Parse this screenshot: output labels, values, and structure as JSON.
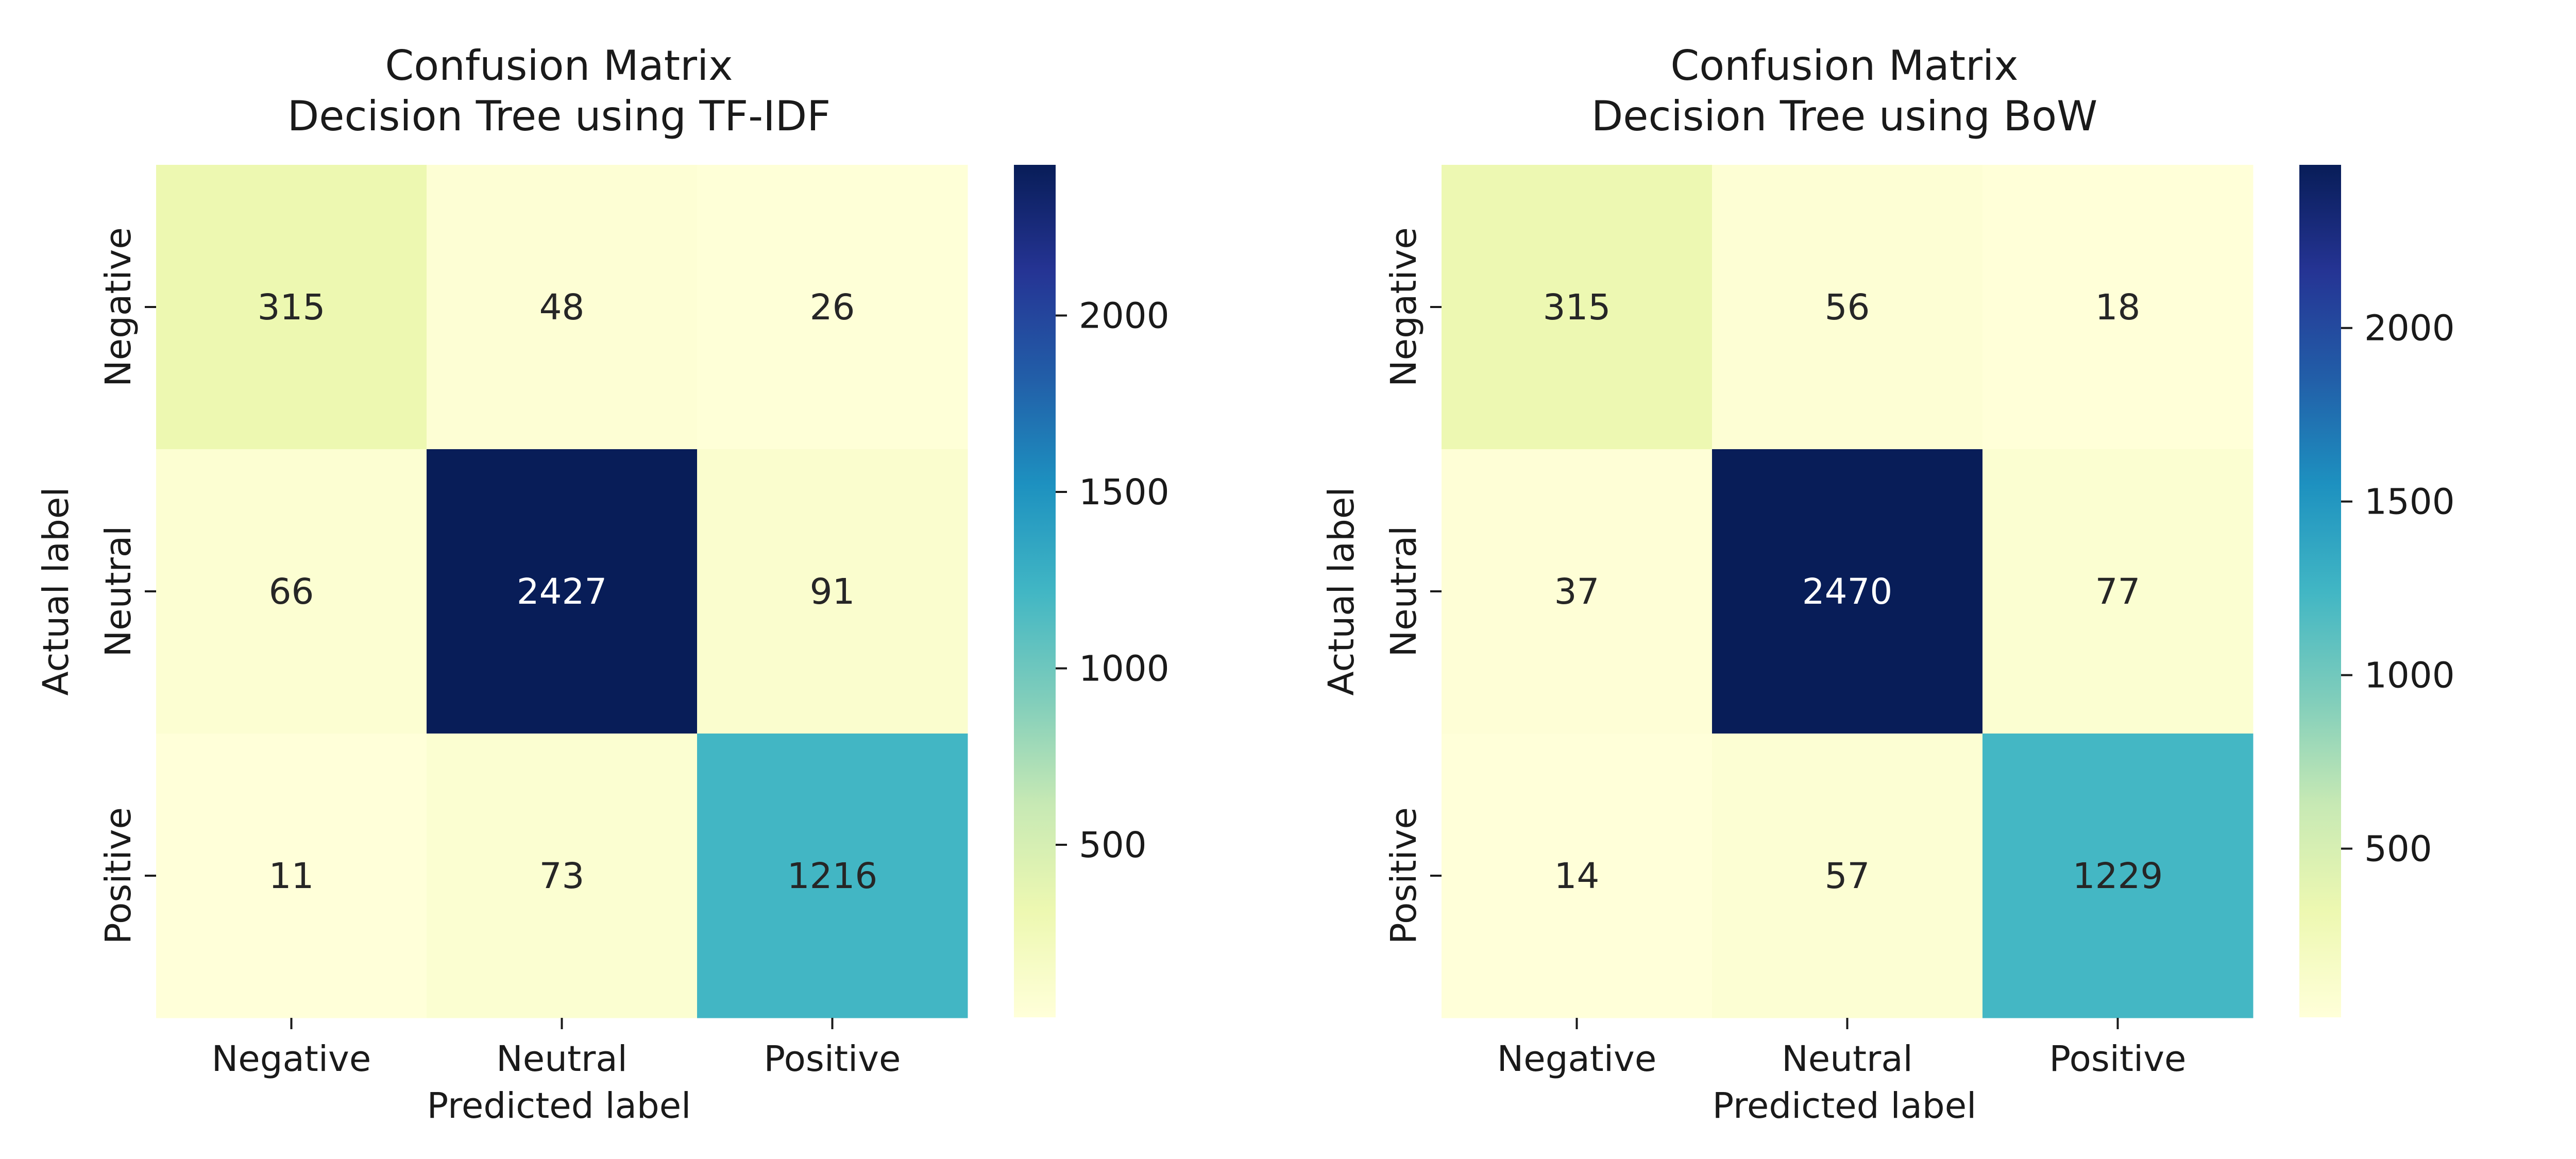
{
  "chart_data": [
    {
      "type": "heatmap",
      "title": "Confusion Matrix",
      "subtitle": "Decision Tree using TF-IDF",
      "xlabel": "Predicted label",
      "ylabel": "Actual label",
      "x_categories": [
        "Negative",
        "Neutral",
        "Positive"
      ],
      "y_categories": [
        "Negative",
        "Neutral",
        "Positive"
      ],
      "values": [
        [
          315,
          48,
          26
        ],
        [
          66,
          2427,
          91
        ],
        [
          11,
          73,
          1216
        ]
      ],
      "colormap": "YlGnBu",
      "colorbar": {
        "range": [
          11,
          2427
        ],
        "ticks": [
          500,
          1000,
          1500,
          2000
        ],
        "tick_labels": [
          "500",
          "1000",
          "1500",
          "2000"
        ]
      }
    },
    {
      "type": "heatmap",
      "title": "Confusion Matrix",
      "subtitle": "Decision Tree using BoW",
      "xlabel": "Predicted label",
      "ylabel": "Actual label",
      "x_categories": [
        "Negative",
        "Neutral",
        "Positive"
      ],
      "y_categories": [
        "Negative",
        "Neutral",
        "Positive"
      ],
      "values": [
        [
          315,
          56,
          18
        ],
        [
          37,
          2470,
          77
        ],
        [
          14,
          57,
          1229
        ]
      ],
      "colormap": "YlGnBu",
      "colorbar": {
        "range": [
          14,
          2470
        ],
        "ticks": [
          500,
          1000,
          1500,
          2000
        ],
        "tick_labels": [
          "500",
          "1000",
          "1500",
          "2000"
        ]
      }
    }
  ]
}
